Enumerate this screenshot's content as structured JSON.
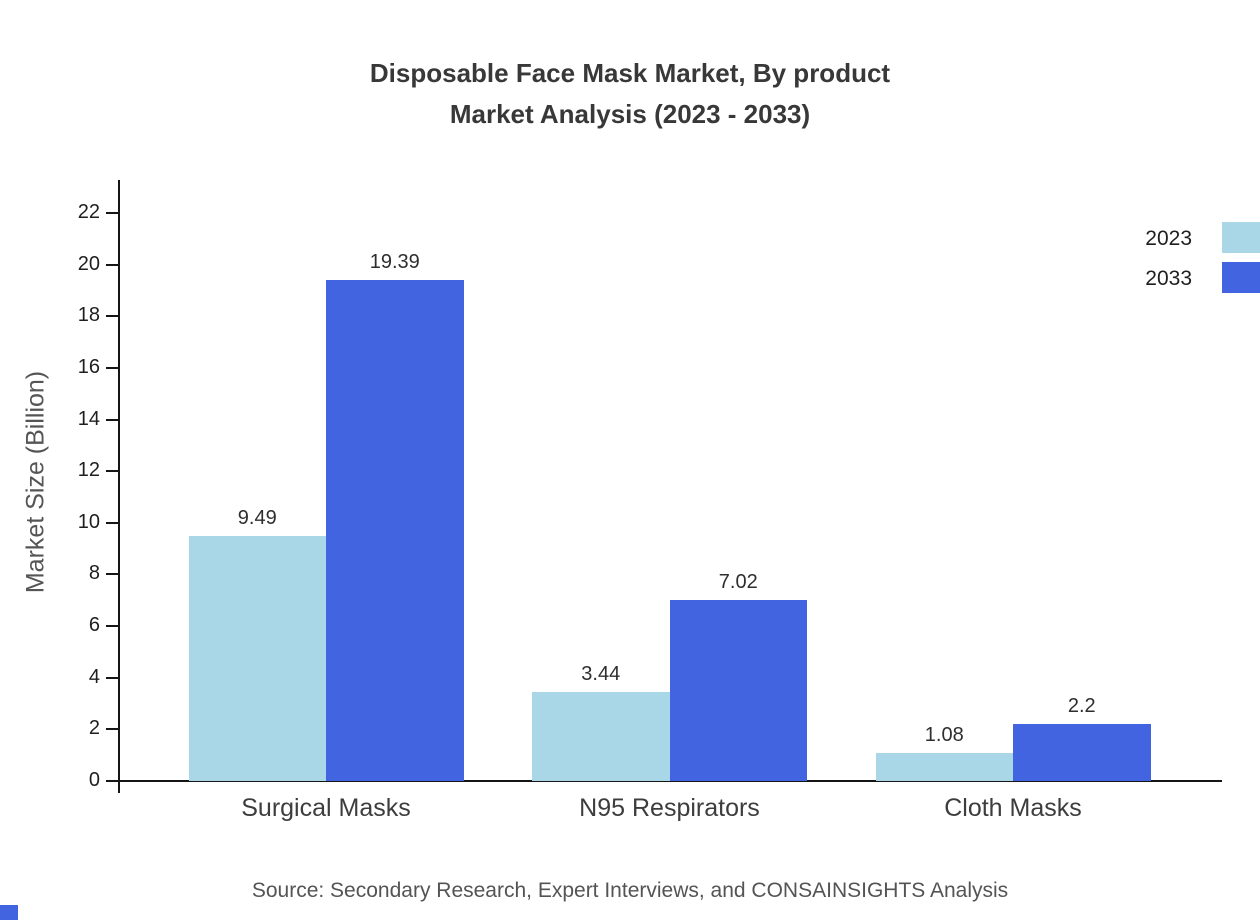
{
  "title_display": {
    "line1": "Disposable Face Mask Market, By product",
    "line2": "Market Analysis (2023 - 2033)"
  },
  "source": "Source: Secondary Research, Expert Interviews, and CONSAINSIGHTS Analysis",
  "chart_data": {
    "type": "bar",
    "title": "Disposable Face Mask Market, By product Market Analysis (2023 - 2033)",
    "categories": [
      "Surgical Masks",
      "N95 Respirators",
      "Cloth Masks"
    ],
    "series": [
      {
        "name": "2023",
        "color": "#a9d7e8",
        "values": [
          9.49,
          3.44,
          1.08
        ]
      },
      {
        "name": "2033",
        "color": "#4264e1",
        "values": [
          19.39,
          7.02,
          2.2
        ]
      }
    ],
    "xlabel": "",
    "ylabel": "Market Size (Billion)",
    "ylim": [
      0,
      23
    ],
    "yticks": [
      0,
      2,
      4,
      6,
      8,
      10,
      12,
      14,
      16,
      18,
      20,
      22
    ],
    "grid": false,
    "legend_position": "top-right"
  },
  "colors": {
    "axis": "#151515",
    "accent": "#4264e1"
  }
}
